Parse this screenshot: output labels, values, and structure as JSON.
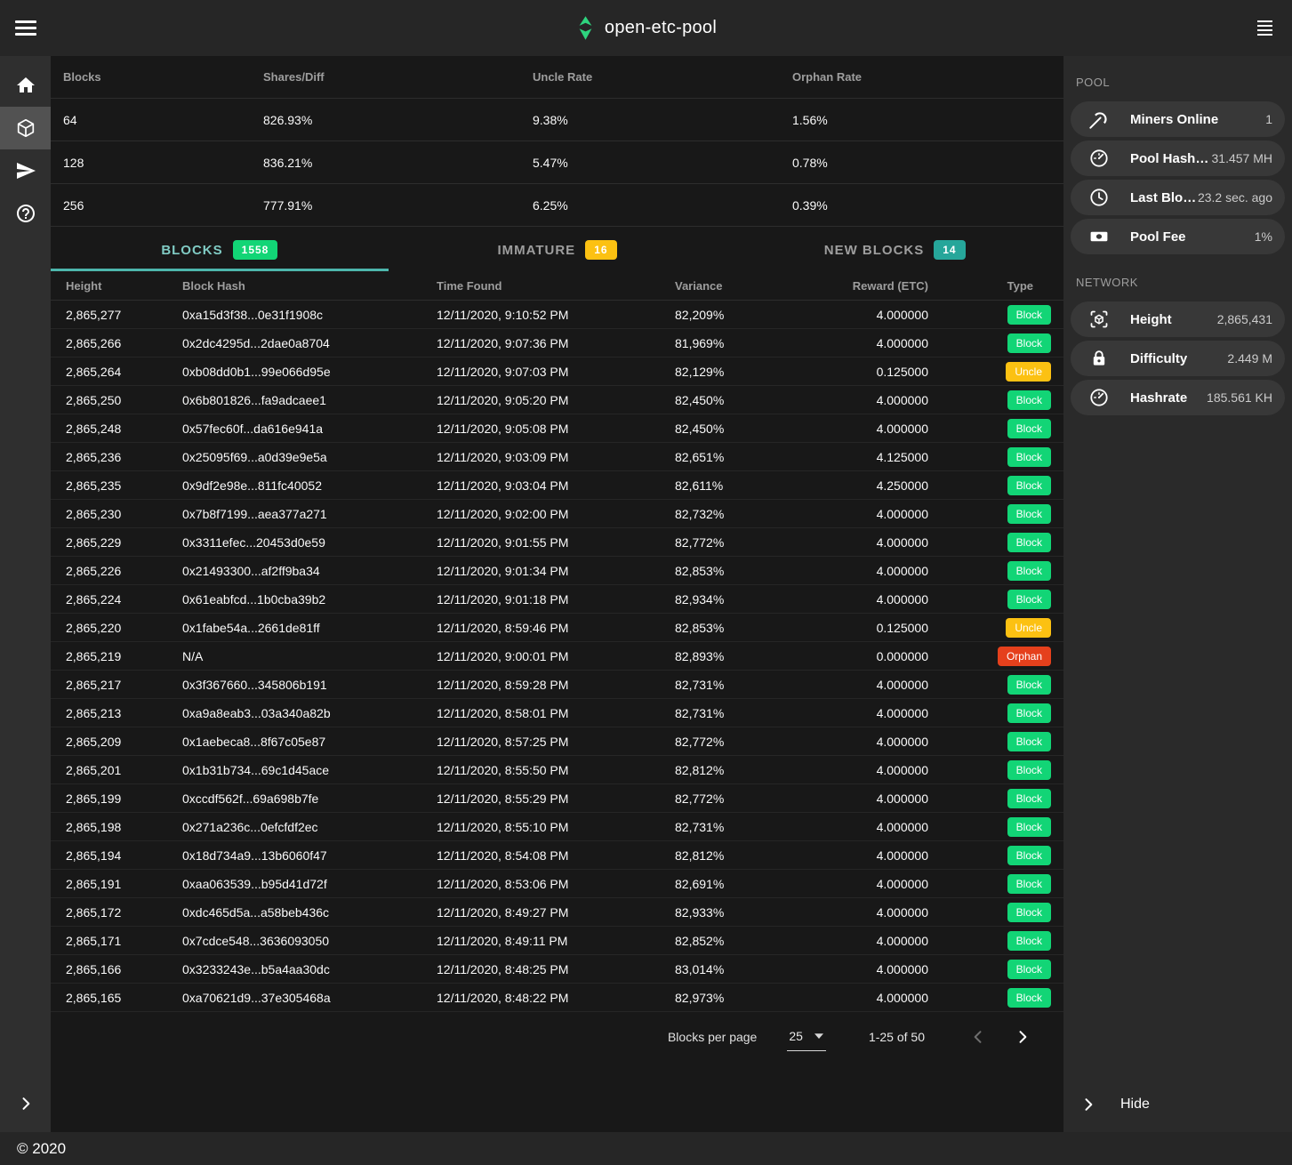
{
  "app": {
    "title": "open-etc-pool",
    "footer_copyright": "© 2020"
  },
  "topbar": {
    "left_menu_icon": "hamburger-menu-icon",
    "logo_icon": "etc-diamond-logo",
    "right_menu_icon": "menu-lines-icon"
  },
  "nav": {
    "items": [
      {
        "icon": "home-icon",
        "active": false
      },
      {
        "icon": "cube-icon",
        "active": true
      },
      {
        "icon": "send-icon",
        "active": false
      },
      {
        "icon": "help-icon",
        "active": false
      }
    ],
    "collapse_icon": "chevron-right-icon"
  },
  "luck_table": {
    "headers": [
      "Blocks",
      "Shares/Diff",
      "Uncle Rate",
      "Orphan Rate"
    ],
    "rows": [
      [
        "64",
        "826.93%",
        "9.38%",
        "1.56%"
      ],
      [
        "128",
        "836.21%",
        "5.47%",
        "0.78%"
      ],
      [
        "256",
        "777.91%",
        "6.25%",
        "0.39%"
      ]
    ]
  },
  "tabs": {
    "items": [
      {
        "label": "BLOCKS",
        "count": "1558",
        "active": true,
        "badge_color": "#12d576"
      },
      {
        "label": "IMMATURE",
        "count": "16",
        "active": false,
        "badge_color": "#fcc112"
      },
      {
        "label": "NEW BLOCKS",
        "count": "14",
        "active": false,
        "badge_color": "#26a69a"
      }
    ]
  },
  "blocks_table": {
    "headers": [
      "Height",
      "Block Hash",
      "Time Found",
      "Variance",
      "Reward (ETC)",
      "Type"
    ],
    "rows": [
      [
        "2,865,277",
        "0xa15d3f38...0e31f1908c",
        "12/11/2020, 9:10:52 PM",
        "82,209%",
        "4.000000",
        "Block"
      ],
      [
        "2,865,266",
        "0x2dc4295d...2dae0a8704",
        "12/11/2020, 9:07:36 PM",
        "81,969%",
        "4.000000",
        "Block"
      ],
      [
        "2,865,264",
        "0xb08dd0b1...99e066d95e",
        "12/11/2020, 9:07:03 PM",
        "82,129%",
        "0.125000",
        "Uncle"
      ],
      [
        "2,865,250",
        "0x6b801826...fa9adcaee1",
        "12/11/2020, 9:05:20 PM",
        "82,450%",
        "4.000000",
        "Block"
      ],
      [
        "2,865,248",
        "0x57fec60f...da616e941a",
        "12/11/2020, 9:05:08 PM",
        "82,450%",
        "4.000000",
        "Block"
      ],
      [
        "2,865,236",
        "0x25095f69...a0d39e9e5a",
        "12/11/2020, 9:03:09 PM",
        "82,651%",
        "4.125000",
        "Block"
      ],
      [
        "2,865,235",
        "0x9df2e98e...811fc40052",
        "12/11/2020, 9:03:04 PM",
        "82,611%",
        "4.250000",
        "Block"
      ],
      [
        "2,865,230",
        "0x7b8f7199...aea377a271",
        "12/11/2020, 9:02:00 PM",
        "82,732%",
        "4.000000",
        "Block"
      ],
      [
        "2,865,229",
        "0x3311efec...20453d0e59",
        "12/11/2020, 9:01:55 PM",
        "82,772%",
        "4.000000",
        "Block"
      ],
      [
        "2,865,226",
        "0x21493300...af2ff9ba34",
        "12/11/2020, 9:01:34 PM",
        "82,853%",
        "4.000000",
        "Block"
      ],
      [
        "2,865,224",
        "0x61eabfcd...1b0cba39b2",
        "12/11/2020, 9:01:18 PM",
        "82,934%",
        "4.000000",
        "Block"
      ],
      [
        "2,865,220",
        "0x1fabe54a...2661de81ff",
        "12/11/2020, 8:59:46 PM",
        "82,853%",
        "0.125000",
        "Uncle"
      ],
      [
        "2,865,219",
        "N/A",
        "12/11/2020, 9:00:01 PM",
        "82,893%",
        "0.000000",
        "Orphan"
      ],
      [
        "2,865,217",
        "0x3f367660...345806b191",
        "12/11/2020, 8:59:28 PM",
        "82,731%",
        "4.000000",
        "Block"
      ],
      [
        "2,865,213",
        "0xa9a8eab3...03a340a82b",
        "12/11/2020, 8:58:01 PM",
        "82,731%",
        "4.000000",
        "Block"
      ],
      [
        "2,865,209",
        "0x1aebeca8...8f67c05e87",
        "12/11/2020, 8:57:25 PM",
        "82,772%",
        "4.000000",
        "Block"
      ],
      [
        "2,865,201",
        "0x1b31b734...69c1d45ace",
        "12/11/2020, 8:55:50 PM",
        "82,812%",
        "4.000000",
        "Block"
      ],
      [
        "2,865,199",
        "0xccdf562f...69a698b7fe",
        "12/11/2020, 8:55:29 PM",
        "82,772%",
        "4.000000",
        "Block"
      ],
      [
        "2,865,198",
        "0x271a236c...0efcfdf2ec",
        "12/11/2020, 8:55:10 PM",
        "82,731%",
        "4.000000",
        "Block"
      ],
      [
        "2,865,194",
        "0x18d734a9...13b6060f47",
        "12/11/2020, 8:54:08 PM",
        "82,812%",
        "4.000000",
        "Block"
      ],
      [
        "2,865,191",
        "0xaa063539...b95d41d72f",
        "12/11/2020, 8:53:06 PM",
        "82,691%",
        "4.000000",
        "Block"
      ],
      [
        "2,865,172",
        "0xdc465d5a...a58beb436c",
        "12/11/2020, 8:49:27 PM",
        "82,933%",
        "4.000000",
        "Block"
      ],
      [
        "2,865,171",
        "0x7cdce548...3636093050",
        "12/11/2020, 8:49:11 PM",
        "82,852%",
        "4.000000",
        "Block"
      ],
      [
        "2,865,166",
        "0x3233243e...b5a4aa30dc",
        "12/11/2020, 8:48:25 PM",
        "83,014%",
        "4.000000",
        "Block"
      ],
      [
        "2,865,165",
        "0xa70621d9...37e305468a",
        "12/11/2020, 8:48:22 PM",
        "82,973%",
        "4.000000",
        "Block"
      ]
    ]
  },
  "pagination": {
    "per_page_label": "Blocks per page",
    "per_page_value": "25",
    "range_label": "1-25 of 50",
    "prev_icon": "chevron-left-icon",
    "next_icon": "chevron-right-icon"
  },
  "pool_panel": {
    "title": "POOL",
    "items": [
      {
        "icon": "pickaxe-icon",
        "label": "Miners Online",
        "value": "1"
      },
      {
        "icon": "gauge-icon",
        "label": "Pool Hashrate",
        "value": "31.457 MH"
      },
      {
        "icon": "clock-icon",
        "label": "Last Block Fo…",
        "value": "23.2 sec. ago"
      },
      {
        "icon": "banknote-icon",
        "label": "Pool Fee",
        "value": "1%"
      }
    ]
  },
  "network_panel": {
    "title": "NETWORK",
    "items": [
      {
        "icon": "cube-scan-icon",
        "label": "Height",
        "value": "2,865,431"
      },
      {
        "icon": "lock-icon",
        "label": "Difficulty",
        "value": "2.449 M"
      },
      {
        "icon": "gauge-icon",
        "label": "Hashrate",
        "value": "185.561 KH"
      }
    ]
  },
  "hide_button": {
    "label": "Hide",
    "icon": "chevron-right-icon"
  },
  "colors": {
    "accent_teal": "#80cbc4",
    "tab_underline": "#4db6ac",
    "badge_green": "#12d576",
    "badge_amber": "#fcc112",
    "badge_teal": "#26a69a",
    "chip_block": "#12d576",
    "chip_uncle": "#fcc112",
    "chip_orphan": "#e5401c",
    "logo_green": "#2ed47e"
  }
}
